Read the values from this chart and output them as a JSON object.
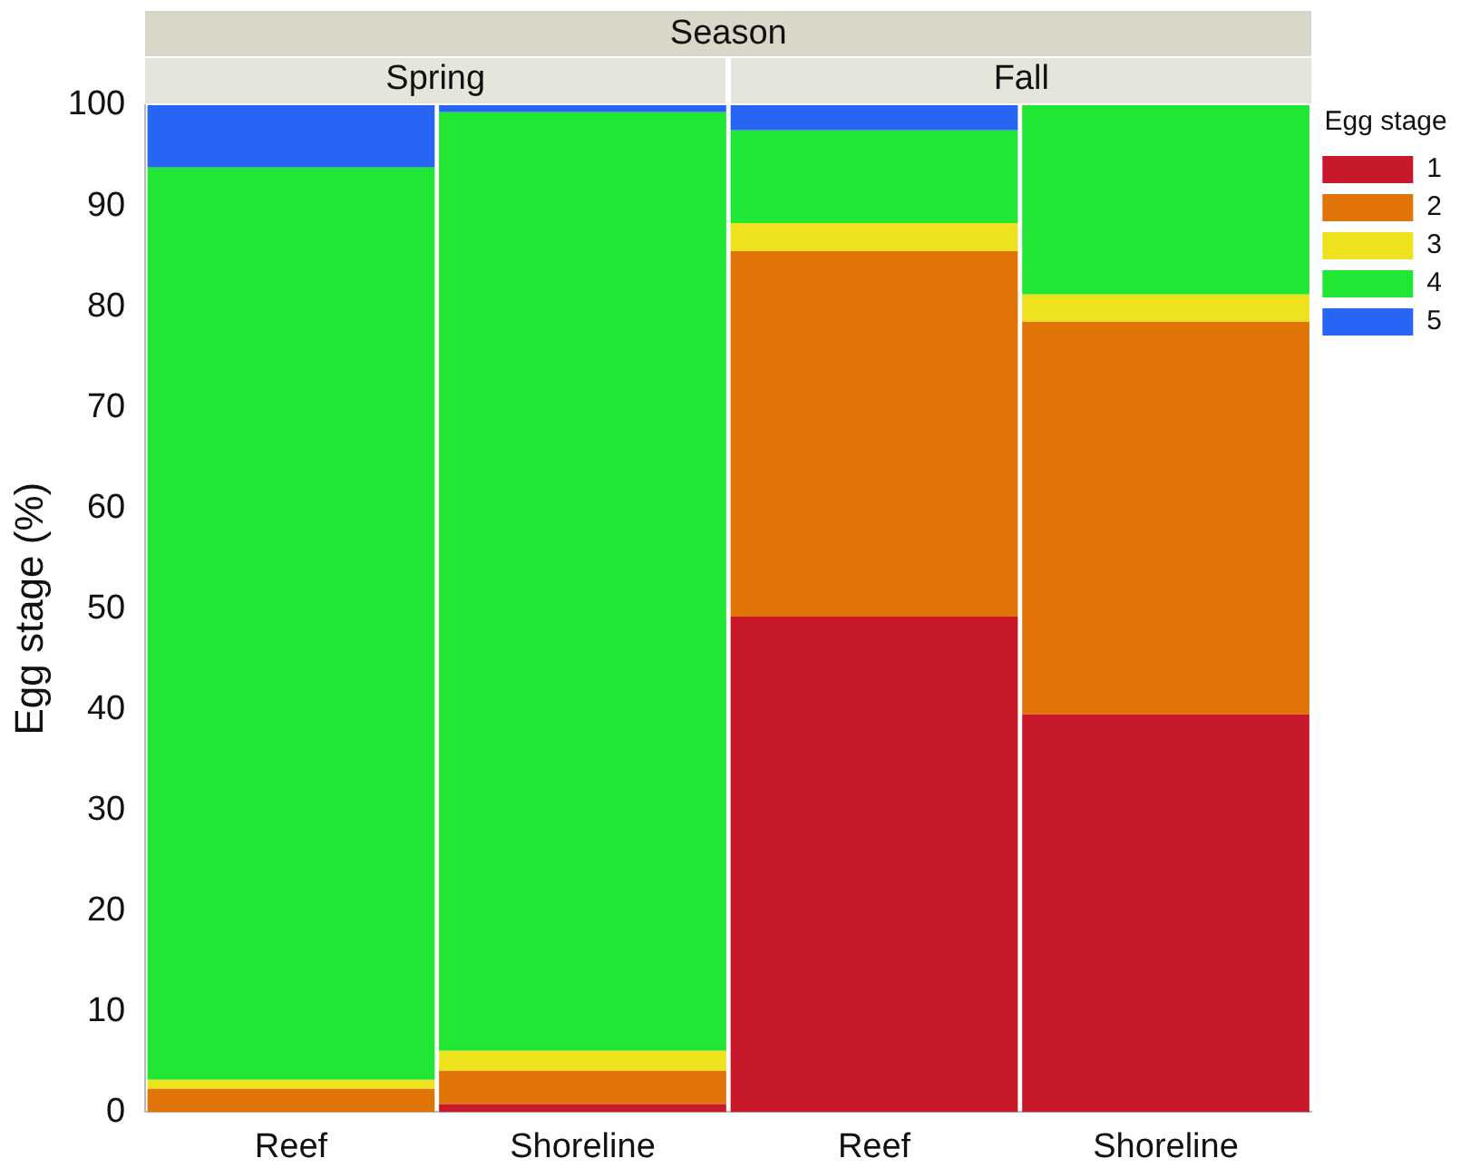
{
  "chart_data": {
    "type": "bar",
    "stacked": true,
    "title": "Season",
    "annotations": [
      "Spring",
      "Fall"
    ],
    "ylabel": "Egg stage (%)",
    "legend_title": "Egg stage",
    "legend": "top right",
    "grid": false,
    "categories": [
      "Reef",
      "Shoreline",
      "Reef",
      "Shoreline"
    ],
    "ylim": [
      0,
      100
    ],
    "yticks": [
      0,
      10,
      20,
      30,
      40,
      50,
      60,
      70,
      80,
      90,
      100
    ],
    "series": [
      {
        "name": "1",
        "color": "#c8192a",
        "values": [
          0,
          0.8,
          49.2,
          39.5
        ]
      },
      {
        "name": "2",
        "color": "#e07406",
        "values": [
          2.3,
          3.3,
          36.3,
          39
        ]
      },
      {
        "name": "3",
        "color": "#eee21f",
        "values": [
          0.9,
          2,
          2.8,
          2.7
        ]
      },
      {
        "name": "4",
        "color": "#22e634",
        "values": [
          90.6,
          93.2,
          9.2,
          18.8
        ]
      },
      {
        "name": "5",
        "color": "#2766f5",
        "values": [
          6.2,
          0.7,
          2.5,
          0
        ]
      }
    ]
  }
}
